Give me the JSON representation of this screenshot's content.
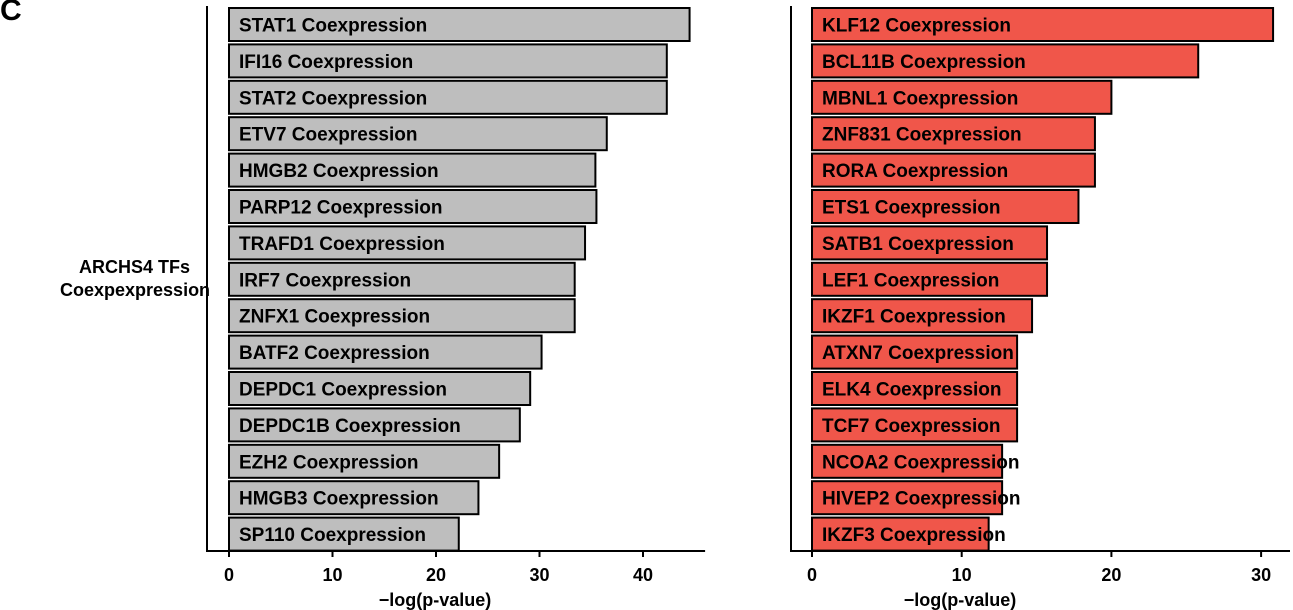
{
  "panel_label": "C",
  "row_label": [
    "ARCHS4 TFs",
    "Coexpexpression"
  ],
  "chart_data": [
    {
      "type": "bar",
      "orientation": "horizontal",
      "xlabel": "−log(p-value)",
      "xlim": [
        0,
        46
      ],
      "xticks": [
        0,
        10,
        20,
        30,
        40
      ],
      "bar_color": "#bebebe",
      "categories": [
        "STAT1 Coexpression",
        "IFI16 Coexpression",
        "STAT2 Coexpression",
        "ETV7 Coexpression",
        "HMGB2 Coexpression",
        "PARP12 Coexpression",
        "TRAFD1 Coexpression",
        "IRF7 Coexpression",
        "ZNFX1 Coexpression",
        "BATF2 Coexpression",
        "DEPDC1 Coexpression",
        "DEPDC1B Coexpression",
        "EZH2 Coexpression",
        "HMGB3 Coexpression",
        "SP110 Coexpression"
      ],
      "values": [
        44.5,
        42.3,
        42.3,
        36.5,
        35.4,
        35.5,
        34.4,
        33.4,
        33.4,
        30.2,
        29.1,
        28.1,
        26.1,
        24.1,
        22.2
      ]
    },
    {
      "type": "bar",
      "orientation": "horizontal",
      "xlabel": "−log(p-value)",
      "xlim": [
        0,
        32
      ],
      "xticks": [
        0,
        10,
        20,
        30
      ],
      "bar_color": "#f0564a",
      "categories": [
        "KLF12 Coexpression",
        "BCL11B Coexpression",
        "MBNL1 Coexpression",
        "ZNF831 Coexpression",
        "RORA Coexpression",
        "ETS1 Coexpression",
        "SATB1 Coexpression",
        "LEF1 Coexpression",
        "IKZF1 Coexpression",
        "ATXN7 Coexpression",
        "ELK4 Coexpression",
        "TCF7 Coexpression",
        "NCOA2 Coexpression",
        "HIVEP2 Coexpression",
        "IKZF3 Coexpression"
      ],
      "values": [
        30.8,
        25.8,
        20.0,
        18.9,
        18.9,
        17.8,
        15.7,
        15.7,
        14.7,
        13.7,
        13.7,
        13.7,
        12.7,
        12.7,
        11.8
      ]
    }
  ]
}
